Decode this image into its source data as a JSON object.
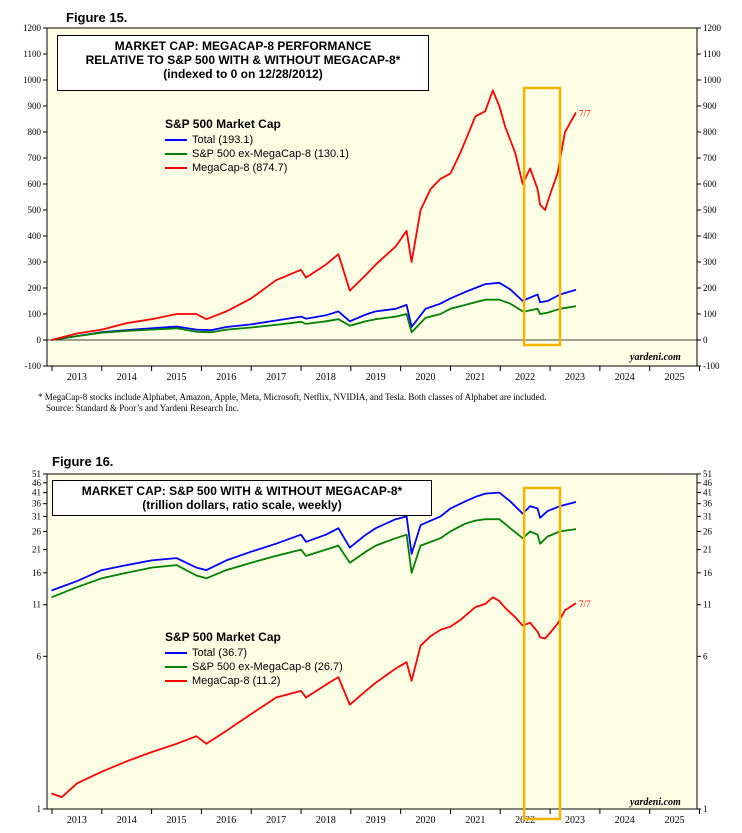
{
  "fig15": {
    "figure_label": "Figure 15.",
    "title_lines": [
      "MARKET CAP: MEGACAP-8 PERFORMANCE",
      "RELATIVE TO S&P 500 WITH & WITHOUT MEGACAP-8*",
      "(indexed to 0 on 12/28/2012)"
    ],
    "legend_title": "S&P 500 Market Cap",
    "legend": [
      "Total (193.1)",
      "S&P 500 ex-MegaCap-8 (130.1)",
      "MegaCap-8 (874.7)"
    ],
    "end_marker": "7/7",
    "brand": "yardeni.com",
    "footnote_lines": [
      "*   MegaCap-8 stocks include Alphabet, Amazon, Apple, Meta, Microsoft, Netflix, NVIDIA, and Tesla. Both classes of Alphabet are included.",
      "Source: Standard & Poor’s and Yardeni Research Inc."
    ]
  },
  "fig16": {
    "figure_label": "Figure 16.",
    "title_lines": [
      "MARKET CAP: S&P 500 WITH & WITHOUT MEGACAP-8*",
      "(trillion dollars, ratio scale, weekly)"
    ],
    "legend_title": "S&P 500 Market Cap",
    "legend": [
      "Total (36.7)",
      "S&P 500 ex-MegaCap-8 (26.7)",
      "MegaCap-8 (11.2)"
    ],
    "end_marker": "7/7",
    "brand": "yardeni.com"
  },
  "chart_data": [
    {
      "type": "line",
      "yticks": [
        -100,
        0,
        100,
        200,
        300,
        400,
        500,
        600,
        700,
        800,
        900,
        1000,
        1100,
        1200
      ],
      "ylim": [
        -100,
        1200
      ],
      "xlim": [
        2012.9,
        2025.95
      ],
      "xticks": [
        "2013",
        "2014",
        "2015",
        "2016",
        "2017",
        "2018",
        "2019",
        "2020",
        "2021",
        "2022",
        "2023",
        "2024",
        "2025"
      ],
      "grid": false,
      "legend_position": "upper-left",
      "colors": {
        "total": "#0000ff",
        "ex": "#008000",
        "mega": "#ff0000",
        "highlight": "#f5b400",
        "plot_bg": "#ffffe6"
      },
      "highlight_x": [
        2022.48,
        2023.2
      ],
      "series": [
        {
          "name": "Total (193.1)",
          "color": "#0000ff",
          "x": [
            2012.99,
            2013.5,
            2014,
            2014.5,
            2015,
            2015.5,
            2015.9,
            2016.2,
            2016.5,
            2017,
            2017.5,
            2018,
            2018.1,
            2018.5,
            2018.75,
            2018.98,
            2019.3,
            2019.5,
            2019.9,
            2020.12,
            2020.22,
            2020.5,
            2020.8,
            2021,
            2021.3,
            2021.5,
            2021.7,
            2021.98,
            2022.2,
            2022.45,
            2022.5,
            2022.75,
            2022.8,
            2022.95,
            2023.2,
            2023.52
          ],
          "y": [
            0,
            15,
            30,
            38,
            45,
            52,
            40,
            38,
            50,
            60,
            75,
            90,
            82,
            95,
            110,
            72,
            98,
            110,
            120,
            135,
            50,
            120,
            140,
            160,
            185,
            200,
            215,
            220,
            195,
            150,
            155,
            175,
            145,
            150,
            175,
            193
          ]
        },
        {
          "name": "S&P 500 ex-MegaCap-8 (130.1)",
          "color": "#008000",
          "x": [
            2012.99,
            2013.5,
            2014,
            2014.5,
            2015,
            2015.5,
            2015.9,
            2016.2,
            2016.5,
            2017,
            2017.5,
            2018,
            2018.1,
            2018.5,
            2018.75,
            2018.98,
            2019.3,
            2019.5,
            2019.9,
            2020.12,
            2020.22,
            2020.5,
            2020.8,
            2021,
            2021.3,
            2021.5,
            2021.7,
            2021.98,
            2022.2,
            2022.45,
            2022.5,
            2022.75,
            2022.8,
            2022.95,
            2023.2,
            2023.52
          ],
          "y": [
            0,
            15,
            28,
            35,
            40,
            45,
            32,
            30,
            40,
            48,
            58,
            70,
            62,
            72,
            80,
            55,
            72,
            80,
            90,
            100,
            30,
            85,
            100,
            120,
            135,
            145,
            155,
            155,
            140,
            110,
            110,
            120,
            100,
            105,
            120,
            130
          ]
        },
        {
          "name": "MegaCap-8 (874.7)",
          "color": "#ff0000",
          "x": [
            2012.99,
            2013.5,
            2014,
            2014.5,
            2015,
            2015.5,
            2015.9,
            2016.1,
            2016.5,
            2017,
            2017.5,
            2018,
            2018.1,
            2018.5,
            2018.75,
            2018.98,
            2019.3,
            2019.5,
            2019.9,
            2020.12,
            2020.22,
            2020.4,
            2020.6,
            2020.8,
            2021,
            2021.2,
            2021.5,
            2021.7,
            2021.85,
            2021.98,
            2022.1,
            2022.3,
            2022.45,
            2022.6,
            2022.75,
            2022.8,
            2022.9,
            2023.0,
            2023.15,
            2023.3,
            2023.52
          ],
          "y": [
            0,
            25,
            40,
            65,
            80,
            100,
            100,
            80,
            110,
            160,
            230,
            270,
            240,
            290,
            330,
            190,
            250,
            290,
            360,
            420,
            300,
            500,
            580,
            620,
            640,
            720,
            860,
            880,
            960,
            900,
            820,
            720,
            600,
            660,
            580,
            520,
            500,
            560,
            640,
            800,
            875
          ]
        }
      ]
    },
    {
      "type": "line",
      "scale": "log",
      "yticks": [
        1,
        6,
        11,
        16,
        21,
        26,
        31,
        36,
        41,
        46,
        51
      ],
      "ylim": [
        1,
        51
      ],
      "xlim": [
        2012.9,
        2025.95
      ],
      "xticks": [
        "2013",
        "2014",
        "2015",
        "2016",
        "2017",
        "2018",
        "2019",
        "2020",
        "2021",
        "2022",
        "2023",
        "2024",
        "2025"
      ],
      "grid": false,
      "legend_position": "lower-left",
      "colors": {
        "total": "#0000ff",
        "ex": "#008000",
        "mega": "#ff0000",
        "highlight": "#f5b400",
        "plot_bg": "#ffffe6"
      },
      "highlight_x": [
        2022.48,
        2023.2
      ],
      "series": [
        {
          "name": "Total (36.7)",
          "color": "#0000ff",
          "x": [
            2012.99,
            2013.5,
            2014,
            2014.5,
            2015,
            2015.5,
            2015.9,
            2016.1,
            2016.5,
            2017,
            2017.5,
            2018,
            2018.1,
            2018.5,
            2018.75,
            2018.98,
            2019.3,
            2019.5,
            2019.9,
            2020.12,
            2020.22,
            2020.4,
            2020.8,
            2021,
            2021.3,
            2021.5,
            2021.7,
            2021.98,
            2022.2,
            2022.45,
            2022.6,
            2022.75,
            2022.8,
            2022.95,
            2023.2,
            2023.52
          ],
          "y": [
            13,
            14.5,
            16.5,
            17.5,
            18.5,
            19,
            17,
            16.5,
            18.5,
            20.5,
            22.5,
            25,
            23,
            25,
            27,
            21.5,
            25,
            27,
            30,
            31,
            20,
            28,
            31,
            34,
            37,
            39,
            40.5,
            41,
            37,
            32,
            35,
            34,
            30.5,
            33,
            35,
            36.7
          ]
        },
        {
          "name": "S&P 500 ex-MegaCap-8 (26.7)",
          "color": "#008000",
          "x": [
            2012.99,
            2013.5,
            2014,
            2014.5,
            2015,
            2015.5,
            2015.9,
            2016.1,
            2016.5,
            2017,
            2017.5,
            2018,
            2018.1,
            2018.5,
            2018.75,
            2018.98,
            2019.3,
            2019.5,
            2019.9,
            2020.12,
            2020.22,
            2020.4,
            2020.8,
            2021,
            2021.3,
            2021.5,
            2021.7,
            2021.98,
            2022.2,
            2022.45,
            2022.6,
            2022.75,
            2022.8,
            2022.95,
            2023.2,
            2023.52
          ],
          "y": [
            12,
            13.5,
            15,
            16,
            17,
            17.5,
            15.5,
            15,
            16.5,
            18,
            19.5,
            21,
            19.5,
            21,
            22,
            18,
            20.5,
            22,
            24,
            25,
            16,
            22,
            24,
            26,
            28.5,
            29.5,
            30,
            30,
            27,
            24,
            26,
            25,
            22.5,
            24.5,
            26,
            26.7
          ]
        },
        {
          "name": "MegaCap-8 (11.2)",
          "color": "#ff0000",
          "x": [
            2012.99,
            2013.2,
            2013.5,
            2014,
            2014.5,
            2015,
            2015.5,
            2015.9,
            2016.1,
            2016.5,
            2017,
            2017.5,
            2018,
            2018.1,
            2018.5,
            2018.75,
            2018.98,
            2019.3,
            2019.5,
            2019.9,
            2020.12,
            2020.22,
            2020.4,
            2020.6,
            2020.8,
            2021,
            2021.2,
            2021.5,
            2021.7,
            2021.85,
            2021.98,
            2022.1,
            2022.3,
            2022.45,
            2022.6,
            2022.75,
            2022.8,
            2022.9,
            2023.0,
            2023.15,
            2023.3,
            2023.52
          ],
          "y": [
            1.2,
            1.15,
            1.35,
            1.55,
            1.75,
            1.95,
            2.15,
            2.35,
            2.15,
            2.5,
            3.05,
            3.7,
            4.0,
            3.7,
            4.3,
            4.7,
            3.4,
            4.0,
            4.4,
            5.2,
            5.6,
            4.5,
            6.8,
            7.6,
            8.2,
            8.5,
            9.2,
            10.7,
            11.1,
            12.0,
            11.5,
            10.6,
            9.5,
            8.6,
            8.9,
            8.0,
            7.5,
            7.4,
            7.9,
            8.8,
            10.3,
            11.2
          ]
        }
      ]
    }
  ]
}
